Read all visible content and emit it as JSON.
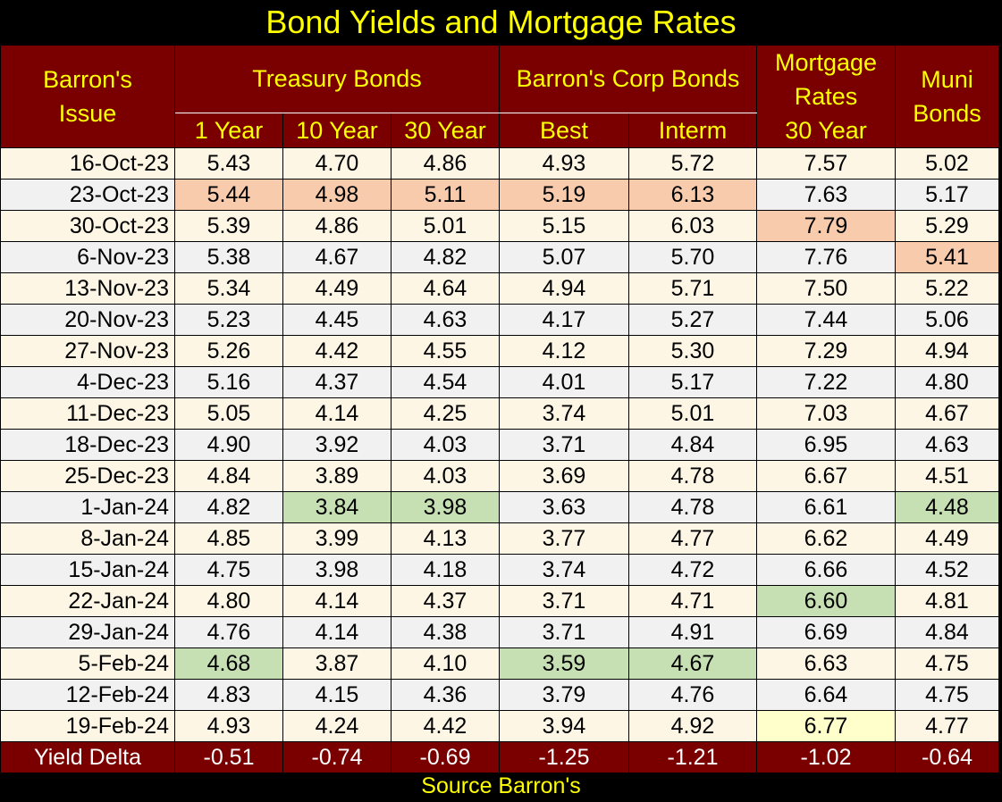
{
  "title": "Bond Yields and Mortgage Rates",
  "source": "Source Barron's",
  "headers": {
    "issue_line1": "Barron's",
    "issue_line2": "Issue",
    "treasury": "Treasury Bonds",
    "corp": "Barron's Corp Bonds",
    "mortgage_line1": "Mortgage",
    "mortgage_line2": "Rates",
    "mortgage_line3": "30 Year",
    "muni_line1": "Muni",
    "muni_line2": "Bonds",
    "t1": "1 Year",
    "t10": "10 Year",
    "t30": "30 Year",
    "best": "Best",
    "interm": "Interm"
  },
  "colors": {
    "background": "#000000",
    "header": "#7a0000",
    "header_text": "#ffff00",
    "high_highlight": "#f8cbad",
    "low_highlight": "#c6e0b4",
    "last_highlight": "#ffffcc"
  },
  "rows": [
    {
      "date": "16-Oct-23",
      "values": [
        "5.43",
        "4.70",
        "4.86",
        "4.93",
        "5.72",
        "7.57",
        "5.02"
      ],
      "marks": [
        "",
        "",
        "",
        "",
        "",
        "",
        ""
      ]
    },
    {
      "date": "23-Oct-23",
      "values": [
        "5.44",
        "4.98",
        "5.11",
        "5.19",
        "6.13",
        "7.63",
        "5.17"
      ],
      "marks": [
        "hi",
        "hi",
        "hi",
        "hi",
        "hi",
        "",
        ""
      ]
    },
    {
      "date": "30-Oct-23",
      "values": [
        "5.39",
        "4.86",
        "5.01",
        "5.15",
        "6.03",
        "7.79",
        "5.29"
      ],
      "marks": [
        "",
        "",
        "",
        "",
        "",
        "hi",
        ""
      ]
    },
    {
      "date": "6-Nov-23",
      "values": [
        "5.38",
        "4.67",
        "4.82",
        "5.07",
        "5.70",
        "7.76",
        "5.41"
      ],
      "marks": [
        "",
        "",
        "",
        "",
        "",
        "",
        "hi"
      ]
    },
    {
      "date": "13-Nov-23",
      "values": [
        "5.34",
        "4.49",
        "4.64",
        "4.94",
        "5.71",
        "7.50",
        "5.22"
      ],
      "marks": [
        "",
        "",
        "",
        "",
        "",
        "",
        ""
      ]
    },
    {
      "date": "20-Nov-23",
      "values": [
        "5.23",
        "4.45",
        "4.63",
        "4.17",
        "5.27",
        "7.44",
        "5.06"
      ],
      "marks": [
        "",
        "",
        "",
        "",
        "",
        "",
        ""
      ]
    },
    {
      "date": "27-Nov-23",
      "values": [
        "5.26",
        "4.42",
        "4.55",
        "4.12",
        "5.30",
        "7.29",
        "4.94"
      ],
      "marks": [
        "",
        "",
        "",
        "",
        "",
        "",
        ""
      ]
    },
    {
      "date": "4-Dec-23",
      "values": [
        "5.16",
        "4.37",
        "4.54",
        "4.01",
        "5.17",
        "7.22",
        "4.80"
      ],
      "marks": [
        "",
        "",
        "",
        "",
        "",
        "",
        ""
      ]
    },
    {
      "date": "11-Dec-23",
      "values": [
        "5.05",
        "4.14",
        "4.25",
        "3.74",
        "5.01",
        "7.03",
        "4.67"
      ],
      "marks": [
        "",
        "",
        "",
        "",
        "",
        "",
        ""
      ]
    },
    {
      "date": "18-Dec-23",
      "values": [
        "4.90",
        "3.92",
        "4.03",
        "3.71",
        "4.84",
        "6.95",
        "4.63"
      ],
      "marks": [
        "",
        "",
        "",
        "",
        "",
        "",
        ""
      ]
    },
    {
      "date": "25-Dec-23",
      "values": [
        "4.84",
        "3.89",
        "4.03",
        "3.69",
        "4.78",
        "6.67",
        "4.51"
      ],
      "marks": [
        "",
        "",
        "",
        "",
        "",
        "",
        ""
      ]
    },
    {
      "date": "1-Jan-24",
      "values": [
        "4.82",
        "3.84",
        "3.98",
        "3.63",
        "4.78",
        "6.61",
        "4.48"
      ],
      "marks": [
        "",
        "lo",
        "lo",
        "",
        "",
        "",
        "lo"
      ]
    },
    {
      "date": "8-Jan-24",
      "values": [
        "4.85",
        "3.99",
        "4.13",
        "3.77",
        "4.77",
        "6.62",
        "4.49"
      ],
      "marks": [
        "",
        "",
        "",
        "",
        "",
        "",
        ""
      ]
    },
    {
      "date": "15-Jan-24",
      "values": [
        "4.75",
        "3.98",
        "4.18",
        "3.74",
        "4.72",
        "6.66",
        "4.52"
      ],
      "marks": [
        "",
        "",
        "",
        "",
        "",
        "",
        ""
      ]
    },
    {
      "date": "22-Jan-24",
      "values": [
        "4.80",
        "4.14",
        "4.37",
        "3.71",
        "4.71",
        "6.60",
        "4.81"
      ],
      "marks": [
        "",
        "",
        "",
        "",
        "",
        "lo",
        ""
      ]
    },
    {
      "date": "29-Jan-24",
      "values": [
        "4.76",
        "4.14",
        "4.38",
        "3.71",
        "4.91",
        "6.69",
        "4.84"
      ],
      "marks": [
        "",
        "",
        "",
        "",
        "",
        "",
        ""
      ]
    },
    {
      "date": "5-Feb-24",
      "values": [
        "4.68",
        "3.87",
        "4.10",
        "3.59",
        "4.67",
        "6.63",
        "4.75"
      ],
      "marks": [
        "lo",
        "",
        "",
        "lo",
        "lo",
        "",
        ""
      ]
    },
    {
      "date": "12-Feb-24",
      "values": [
        "4.83",
        "4.15",
        "4.36",
        "3.79",
        "4.76",
        "6.64",
        "4.75"
      ],
      "marks": [
        "",
        "",
        "",
        "",
        "",
        "",
        ""
      ]
    },
    {
      "date": "19-Feb-24",
      "values": [
        "4.93",
        "4.24",
        "4.42",
        "3.94",
        "4.92",
        "6.77",
        "4.77"
      ],
      "marks": [
        "",
        "",
        "",
        "",
        "",
        "last",
        ""
      ]
    }
  ],
  "footer": {
    "label": "Yield Delta",
    "values": [
      "-0.51",
      "-0.74",
      "-0.69",
      "-1.25",
      "-1.21",
      "-1.02",
      "-0.64"
    ]
  }
}
